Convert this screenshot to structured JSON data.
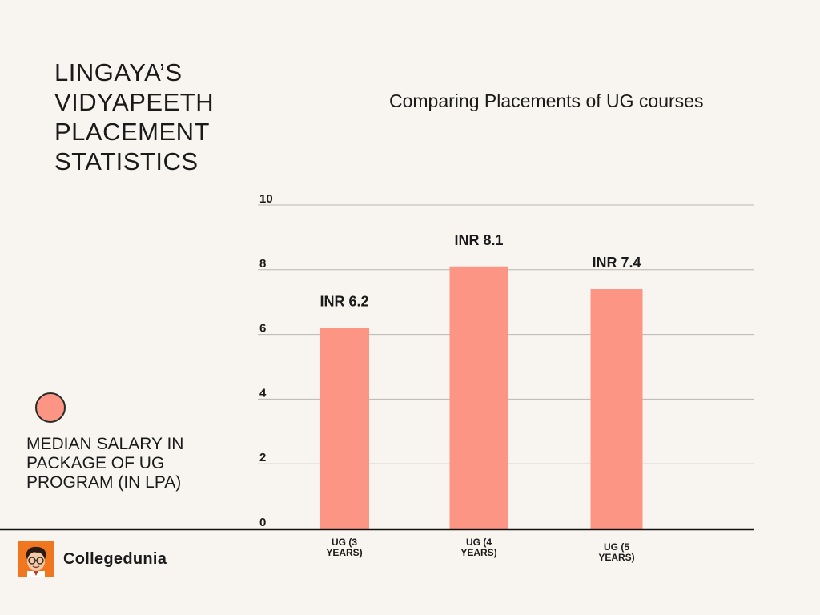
{
  "header": {
    "title": "LINGAYA’S\nVIDYAPEETH\nPLACEMENT\nSTATISTICS",
    "subtitle": "Comparing Placements of UG courses"
  },
  "legend": {
    "label": "MEDIAN SALARY IN\nPACKAGE OF UG\nPROGRAM (IN LPA)",
    "color": "#fd9584"
  },
  "brand": {
    "name": "Collegedunia",
    "logo_color": "#f0761f"
  },
  "chart_data": {
    "type": "bar",
    "categories": [
      "UG (3 YEARS)",
      "UG (4 YEARS)",
      "UG (5 YEARS)"
    ],
    "values": [
      6.2,
      8.1,
      7.4
    ],
    "data_labels": [
      "INR 6.2",
      "INR 8.1",
      "INR 7.4"
    ],
    "series": [
      {
        "name": "MEDIAN SALARY IN PACKAGE OF UG PROGRAM (IN LPA)",
        "values": [
          6.2,
          8.1,
          7.4
        ]
      }
    ],
    "yticks": [
      "0",
      "2",
      "4",
      "6",
      "8",
      "10"
    ],
    "ylim": [
      0,
      10
    ],
    "grid": true,
    "bar_color": "#fd9584",
    "legend_position": "left"
  }
}
